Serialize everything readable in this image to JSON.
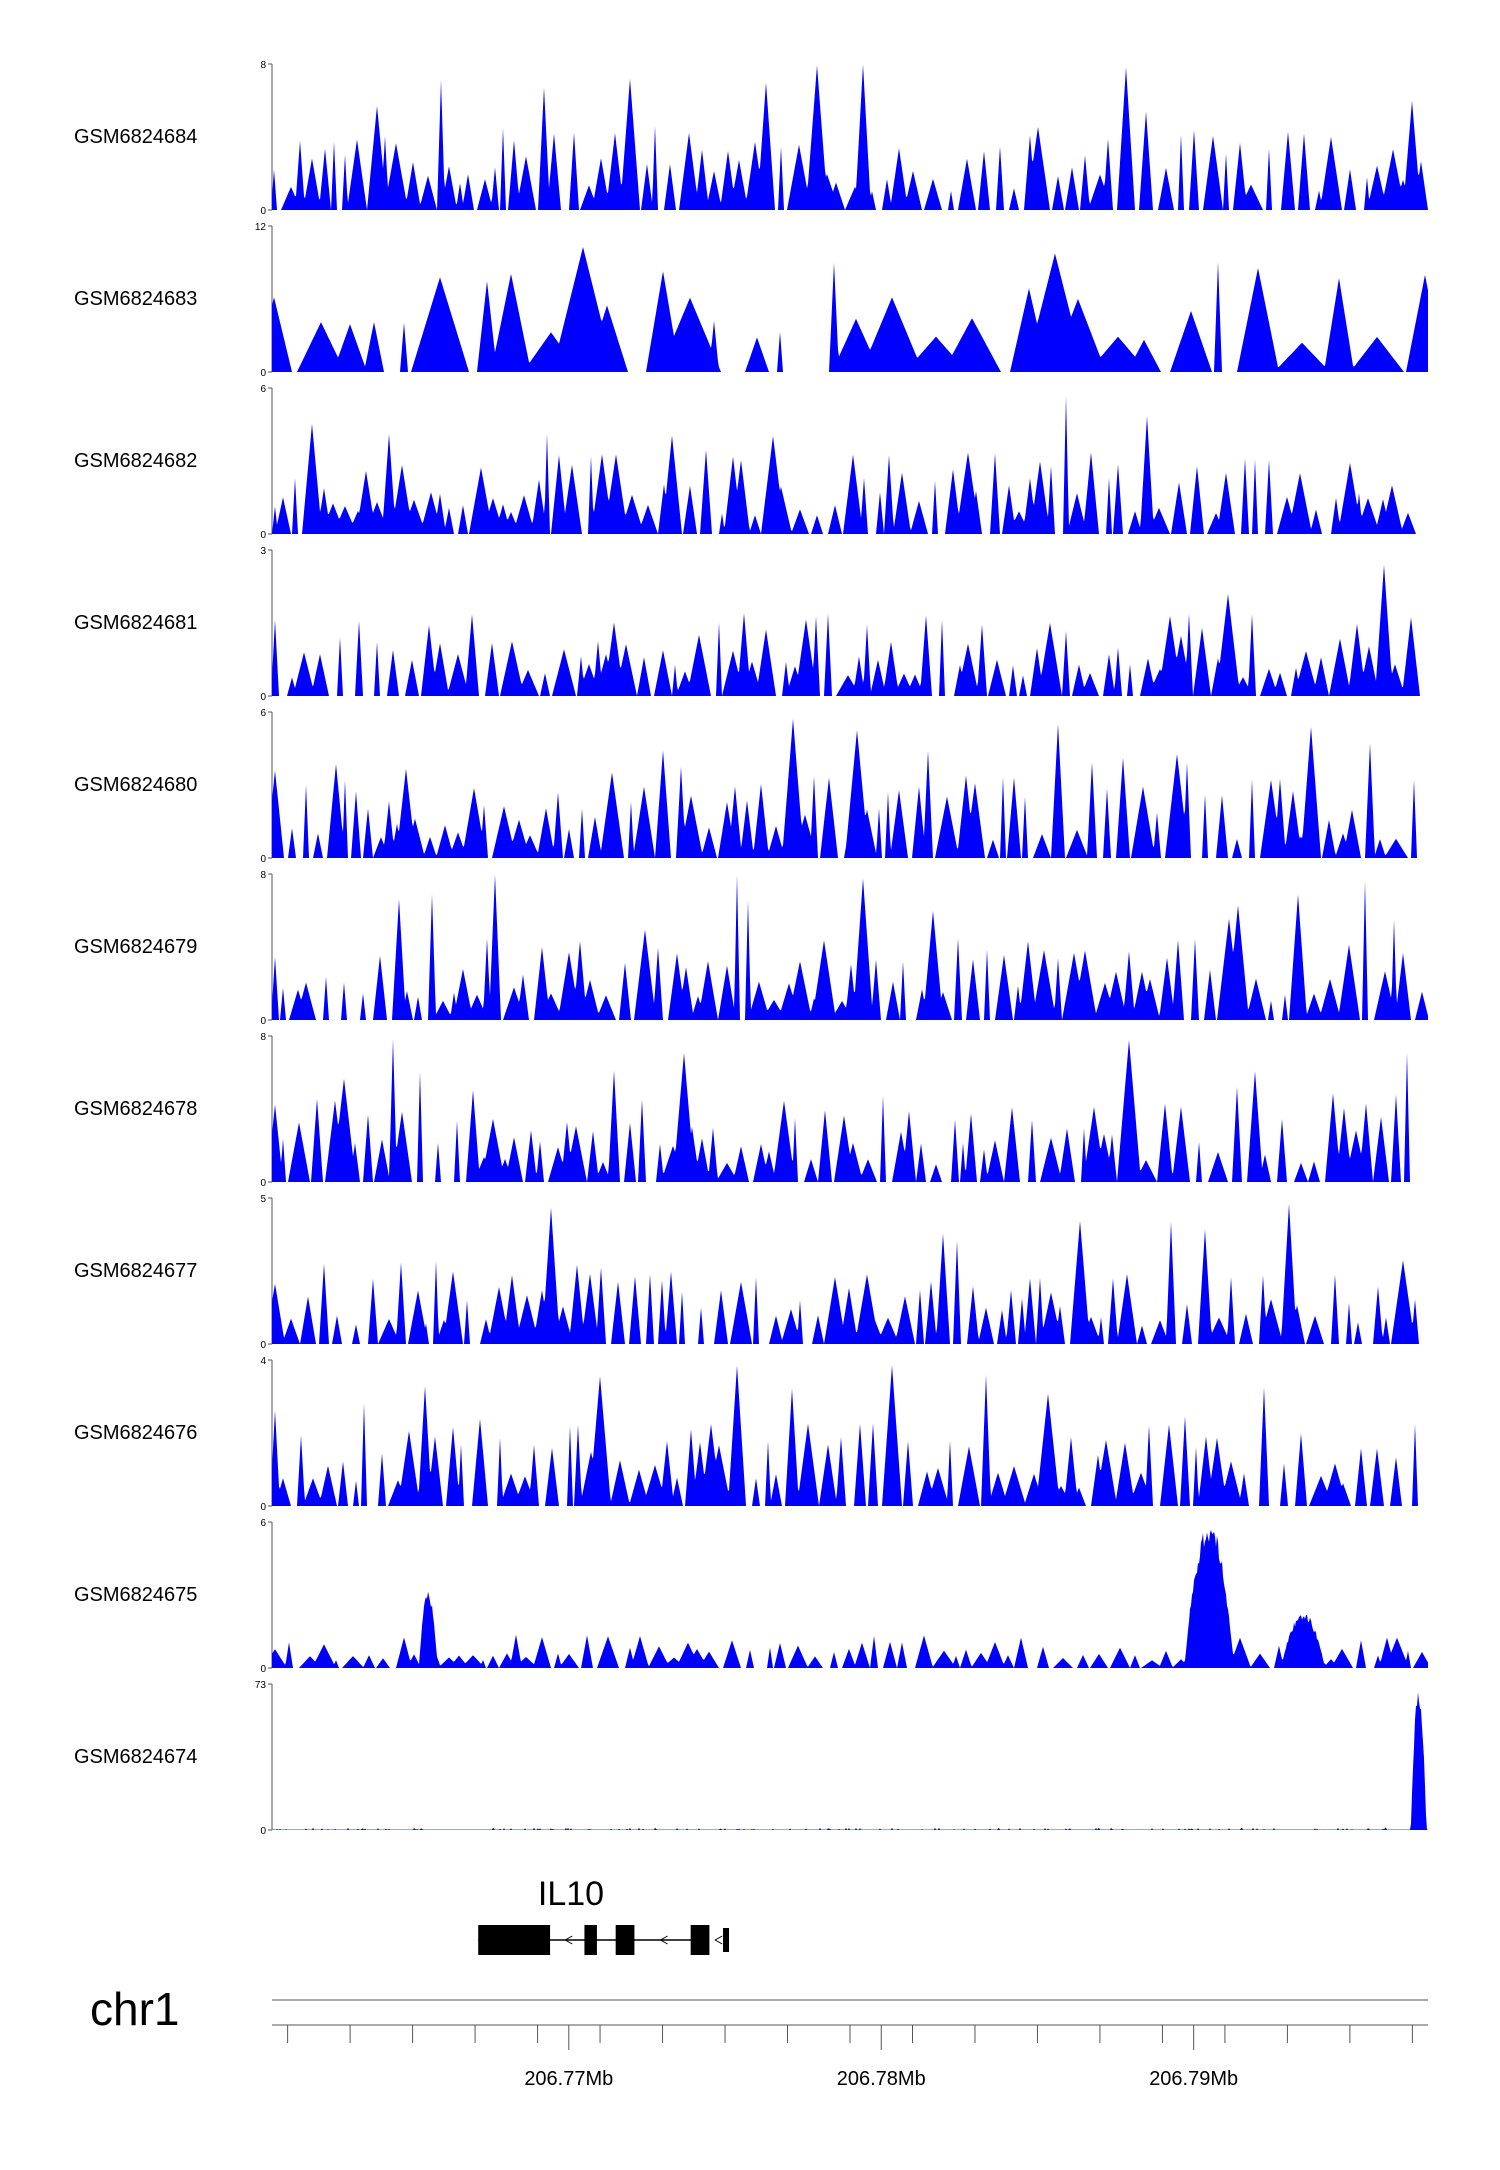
{
  "chart_data": {
    "type": "area",
    "title": "",
    "chromosome": "chr1",
    "x_range_mb": [
      206.7605,
      206.7975
    ],
    "fill_color": "#0000ff",
    "tracks": [
      {
        "name": "GSM6824684",
        "ymax": 8,
        "ymin": 0,
        "seed": 11,
        "style": "dense"
      },
      {
        "name": "GSM6824683",
        "ymax": 12,
        "ymin": 0,
        "seed": 23,
        "style": "sparse"
      },
      {
        "name": "GSM6824682",
        "ymax": 6,
        "ymin": 0,
        "seed": 37,
        "style": "dense"
      },
      {
        "name": "GSM6824681",
        "ymax": 3,
        "ymin": 0,
        "seed": 41,
        "style": "dense"
      },
      {
        "name": "GSM6824680",
        "ymax": 6,
        "ymin": 0,
        "seed": 53,
        "style": "dense"
      },
      {
        "name": "GSM6824679",
        "ymax": 8,
        "ymin": 0,
        "seed": 67,
        "style": "dense"
      },
      {
        "name": "GSM6824678",
        "ymax": 8,
        "ymin": 0,
        "seed": 79,
        "style": "dense"
      },
      {
        "name": "GSM6824677",
        "ymax": 5,
        "ymin": 0,
        "seed": 83,
        "style": "dense"
      },
      {
        "name": "GSM6824676",
        "ymax": 4,
        "ymin": 0,
        "seed": 97,
        "style": "dense"
      },
      {
        "name": "GSM6824675",
        "ymax": 6,
        "ymin": 0,
        "seed": 101,
        "style": "low",
        "peaks": [
          {
            "x_mb": 206.7905,
            "value": 6,
            "width_mb": 0.0008
          },
          {
            "x_mb": 206.7935,
            "value": 2.3,
            "width_mb": 0.0007
          },
          {
            "x_mb": 206.7655,
            "value": 3.2,
            "width_mb": 0.0003
          }
        ]
      },
      {
        "name": "GSM6824674",
        "ymax": 73,
        "ymin": 0,
        "seed": 113,
        "style": "flat",
        "peaks": [
          {
            "x_mb": 206.7972,
            "value": 73,
            "width_mb": 0.00025
          }
        ]
      }
    ],
    "gene": {
      "name": "IL10",
      "strand": "-",
      "start_mb": 206.7671,
      "end_mb": 206.774,
      "exons_mb": [
        [
          206.7671,
          206.7694
        ],
        [
          206.7705,
          206.7709
        ],
        [
          206.7715,
          206.7721
        ],
        [
          206.7739,
          206.7745
        ]
      ]
    },
    "axis": {
      "major_ticks_mb": [
        206.77,
        206.78,
        206.79
      ],
      "major_tick_labels": [
        "206.77Mb",
        "206.78Mb",
        "206.79Mb"
      ],
      "minor_ticks_mb": [
        206.761,
        206.763,
        206.765,
        206.767,
        206.769,
        206.771,
        206.773,
        206.775,
        206.777,
        206.779,
        206.781,
        206.783,
        206.785,
        206.787,
        206.789,
        206.791,
        206.793,
        206.795,
        206.797
      ]
    }
  }
}
